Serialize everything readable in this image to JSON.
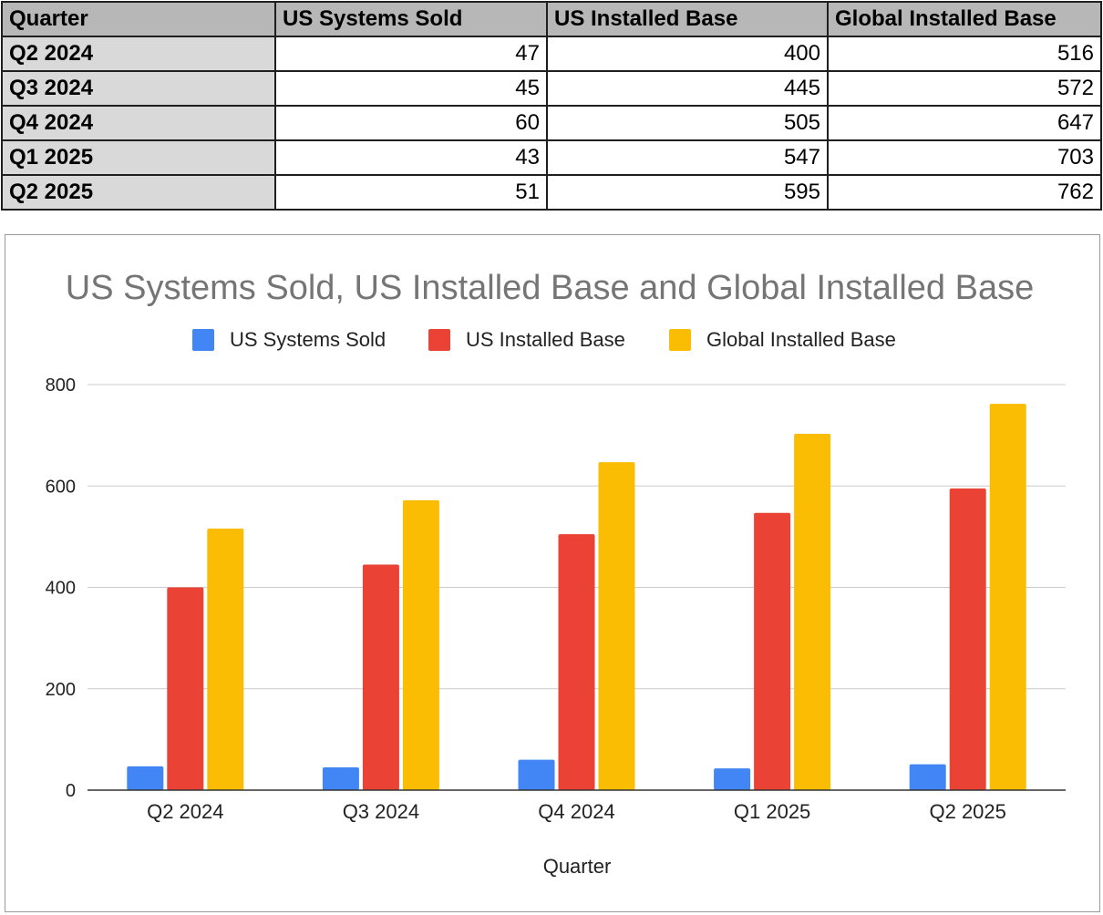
{
  "table": {
    "headers": [
      "Quarter",
      "US Systems Sold",
      "US Installed Base",
      "Global Installed Base"
    ],
    "rows": [
      [
        "Q2 2024",
        "47",
        "400",
        "516"
      ],
      [
        "Q3 2024",
        "45",
        "445",
        "572"
      ],
      [
        "Q4 2024",
        "60",
        "505",
        "647"
      ],
      [
        "Q1 2025",
        "43",
        "547",
        "703"
      ],
      [
        "Q2 2025",
        "51",
        "595",
        "762"
      ]
    ]
  },
  "chart_data": {
    "type": "bar",
    "title": "US Systems Sold, US Installed Base and Global Installed Base",
    "xlabel": "Quarter",
    "ylabel": "",
    "categories": [
      "Q2 2024",
      "Q3 2024",
      "Q4 2024",
      "Q1 2025",
      "Q2 2025"
    ],
    "series": [
      {
        "name": "US Systems Sold",
        "color": "#4285f4",
        "values": [
          47,
          45,
          60,
          43,
          51
        ]
      },
      {
        "name": "US Installed Base",
        "color": "#ea4335",
        "values": [
          400,
          445,
          505,
          547,
          595
        ]
      },
      {
        "name": "Global Installed Base",
        "color": "#fbbc04",
        "values": [
          516,
          572,
          647,
          703,
          762
        ]
      }
    ],
    "ylim": [
      0,
      800
    ],
    "yticks": [
      0,
      200,
      400,
      600,
      800
    ],
    "grid": true,
    "legend": "top-center"
  }
}
